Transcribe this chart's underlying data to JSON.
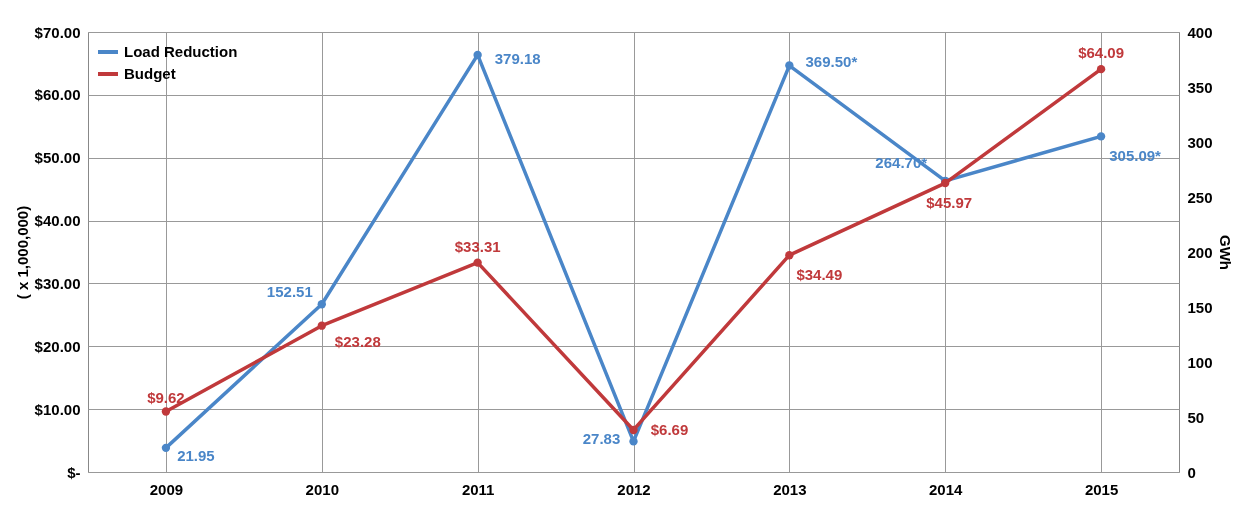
{
  "chart_data": {
    "type": "line",
    "categories": [
      "2009",
      "2010",
      "2011",
      "2012",
      "2013",
      "2014",
      "2015"
    ],
    "series": [
      {
        "name": "Load Reduction",
        "color": "#4a86c8",
        "axis": "y2",
        "values": [
          21.95,
          152.51,
          379.18,
          27.83,
          369.5,
          264.7,
          305.09
        ],
        "value_labels": [
          "21.95",
          "152.51",
          "379.18",
          "27.83",
          "369.50*",
          "264.70*",
          "305.09*"
        ]
      },
      {
        "name": "Budget",
        "color": "#c0393b",
        "values": [
          9.62,
          23.28,
          33.31,
          6.69,
          34.49,
          45.97,
          64.09
        ],
        "value_labels": [
          "$9.62",
          "$23.28",
          "$33.31",
          "$6.69",
          "$34.49",
          "$45.97",
          "$64.09"
        ]
      }
    ],
    "ylabel": "( x 1,000,000)",
    "y2label": "GWh",
    "ylim": [
      0,
      70
    ],
    "yticks": [
      {
        "value": 0,
        "label": "$-"
      },
      {
        "value": 10,
        "label": "$10.00"
      },
      {
        "value": 20,
        "label": "$20.00"
      },
      {
        "value": 30,
        "label": "$30.00"
      },
      {
        "value": 40,
        "label": "$40.00"
      },
      {
        "value": 50,
        "label": "$50.00"
      },
      {
        "value": 60,
        "label": "$60.00"
      },
      {
        "value": 70,
        "label": "$70.00"
      }
    ],
    "y2lim": [
      0,
      400
    ],
    "y2ticks": [
      0,
      50,
      100,
      150,
      200,
      250,
      300,
      350,
      400
    ],
    "grid": true,
    "legend": "top left",
    "marker": "circle",
    "line_style": "solid"
  }
}
